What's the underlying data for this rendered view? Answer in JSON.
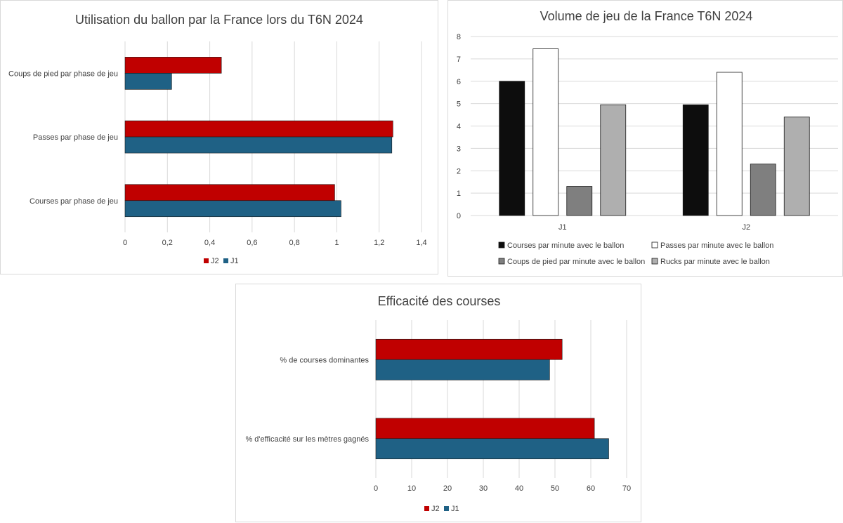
{
  "colors": {
    "J2": "#c00000",
    "J1": "#1f6185"
  },
  "chart_data": [
    {
      "type": "bar",
      "orientation": "horizontal",
      "title": "Utilisation du ballon par la France lors du T6N 2024",
      "categories": [
        "Coups de pied par phase de jeu",
        "Passes par phase de jeu",
        "Courses par phase de jeu"
      ],
      "series": [
        {
          "name": "J2",
          "color": "#c00000",
          "values": [
            0.455,
            1.265,
            0.99
          ]
        },
        {
          "name": "J1",
          "color": "#1f6185",
          "values": [
            0.22,
            1.26,
            1.02
          ]
        }
      ],
      "xticks": [
        "0",
        "0,2",
        "0,4",
        "0,6",
        "0,8",
        "1",
        "1,2",
        "1,4"
      ],
      "xlim": [
        0,
        1.4
      ],
      "grid": true,
      "legend": "bottom",
      "legend_order": [
        "J2",
        "J1"
      ]
    },
    {
      "type": "bar",
      "orientation": "vertical",
      "title": "Volume de jeu  de la France T6N 2024",
      "categories": [
        "J1",
        "J2"
      ],
      "series": [
        {
          "name": "Courses par minute avec le ballon",
          "color": "#0d0d0d",
          "values": [
            6.0,
            4.95
          ]
        },
        {
          "name": "Passes par minute avec le ballon",
          "color": "#ffffff",
          "values": [
            7.45,
            6.4
          ]
        },
        {
          "name": "Coups de pied par minute avec le ballon",
          "color": "#7f7f7f",
          "values": [
            1.3,
            2.3
          ]
        },
        {
          "name": "Rucks par minute avec le ballon",
          "color": "#afafaf",
          "values": [
            4.95,
            4.4
          ]
        }
      ],
      "yticks": [
        "0",
        "1",
        "2",
        "3",
        "4",
        "5",
        "6",
        "7",
        "8"
      ],
      "ylim": [
        0,
        8
      ],
      "grid": true,
      "legend": "bottom"
    },
    {
      "type": "bar",
      "orientation": "horizontal",
      "title": "Efficacité des courses",
      "categories": [
        "% de courses dominantes",
        "% d'efficacité sur les mètres gagnés"
      ],
      "series": [
        {
          "name": "J2",
          "color": "#c00000",
          "values": [
            52,
            61
          ]
        },
        {
          "name": "J1",
          "color": "#1f6185",
          "values": [
            48.5,
            65
          ]
        }
      ],
      "xticks": [
        "0",
        "10",
        "20",
        "30",
        "40",
        "50",
        "60",
        "70"
      ],
      "xlim": [
        0,
        70
      ],
      "grid": true,
      "legend": "bottom",
      "legend_order": [
        "J2",
        "J1"
      ]
    }
  ]
}
